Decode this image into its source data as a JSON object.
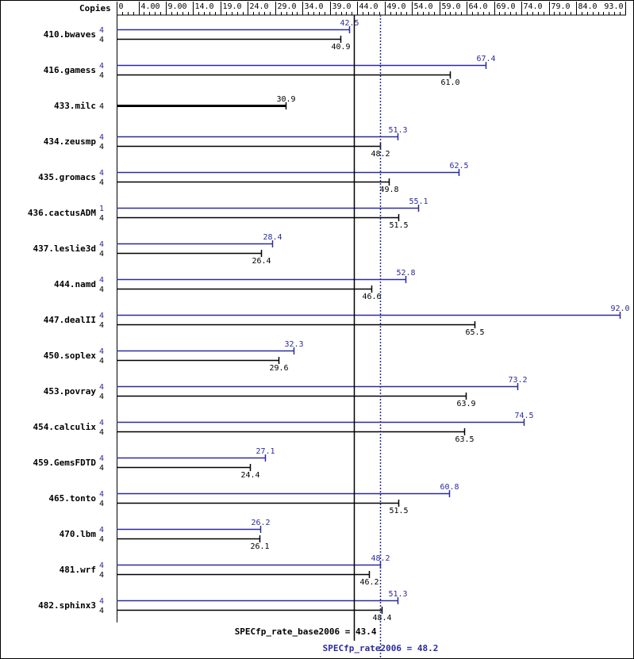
{
  "chart_data": {
    "type": "bar",
    "copies_label": "Copies",
    "x_ticks": [
      "0",
      "4.00",
      "9.00",
      "14.0",
      "19.0",
      "24.0",
      "29.0",
      "34.0",
      "39.0",
      "44.0",
      "49.0",
      "54.0",
      "59.0",
      "64.0",
      "69.0",
      "74.0",
      "79.0",
      "84.0",
      "93.0"
    ],
    "x_tick_values": [
      0,
      4,
      9,
      14,
      19,
      24,
      29,
      34,
      39,
      44,
      49,
      54,
      59,
      64,
      69,
      74,
      79,
      84,
      93
    ],
    "xlim": [
      0,
      93
    ],
    "benchmarks": [
      {
        "name": "410.bwaves",
        "peak": {
          "copies": "4",
          "value": 42.5,
          "label": "42.5"
        },
        "base": {
          "copies": "4",
          "value": 40.9,
          "label": "40.9"
        }
      },
      {
        "name": "416.gamess",
        "peak": {
          "copies": "4",
          "value": 67.4,
          "label": "67.4"
        },
        "base": {
          "copies": "4",
          "value": 61.0,
          "label": "61.0"
        }
      },
      {
        "name": "433.milc",
        "peak": null,
        "base": {
          "copies": "4",
          "value": 30.9,
          "label": "30.9"
        }
      },
      {
        "name": "434.zeusmp",
        "peak": {
          "copies": "4",
          "value": 51.3,
          "label": "51.3"
        },
        "base": {
          "copies": "4",
          "value": 48.2,
          "label": "48.2"
        }
      },
      {
        "name": "435.gromacs",
        "peak": {
          "copies": "4",
          "value": 62.5,
          "label": "62.5"
        },
        "base": {
          "copies": "4",
          "value": 49.8,
          "label": "49.8"
        }
      },
      {
        "name": "436.cactusADM",
        "peak": {
          "copies": "1",
          "value": 55.1,
          "label": "55.1"
        },
        "base": {
          "copies": "4",
          "value": 51.5,
          "label": "51.5"
        }
      },
      {
        "name": "437.leslie3d",
        "peak": {
          "copies": "4",
          "value": 28.4,
          "label": "28.4"
        },
        "base": {
          "copies": "4",
          "value": 26.4,
          "label": "26.4"
        }
      },
      {
        "name": "444.namd",
        "peak": {
          "copies": "4",
          "value": 52.8,
          "label": "52.8"
        },
        "base": {
          "copies": "4",
          "value": 46.6,
          "label": "46.6"
        }
      },
      {
        "name": "447.dealII",
        "peak": {
          "copies": "4",
          "value": 92.0,
          "label": "92.0"
        },
        "base": {
          "copies": "4",
          "value": 65.5,
          "label": "65.5"
        }
      },
      {
        "name": "450.soplex",
        "peak": {
          "copies": "4",
          "value": 32.3,
          "label": "32.3"
        },
        "base": {
          "copies": "4",
          "value": 29.6,
          "label": "29.6"
        }
      },
      {
        "name": "453.povray",
        "peak": {
          "copies": "4",
          "value": 73.2,
          "label": "73.2"
        },
        "base": {
          "copies": "4",
          "value": 63.9,
          "label": "63.9"
        }
      },
      {
        "name": "454.calculix",
        "peak": {
          "copies": "4",
          "value": 74.5,
          "label": "74.5"
        },
        "base": {
          "copies": "4",
          "value": 63.5,
          "label": "63.5"
        }
      },
      {
        "name": "459.GemsFDTD",
        "peak": {
          "copies": "4",
          "value": 27.1,
          "label": "27.1"
        },
        "base": {
          "copies": "4",
          "value": 24.4,
          "label": "24.4"
        }
      },
      {
        "name": "465.tonto",
        "peak": {
          "copies": "4",
          "value": 60.8,
          "label": "60.8"
        },
        "base": {
          "copies": "4",
          "value": 51.5,
          "label": "51.5"
        }
      },
      {
        "name": "470.lbm",
        "peak": {
          "copies": "4",
          "value": 26.2,
          "label": "26.2"
        },
        "base": {
          "copies": "4",
          "value": 26.1,
          "label": "26.1"
        }
      },
      {
        "name": "481.wrf",
        "peak": {
          "copies": "4",
          "value": 48.2,
          "label": "48.2"
        },
        "base": {
          "copies": "4",
          "value": 46.2,
          "label": "46.2"
        }
      },
      {
        "name": "482.sphinx3",
        "peak": {
          "copies": "4",
          "value": 51.3,
          "label": "51.3"
        },
        "base": {
          "copies": "4",
          "value": 48.4,
          "label": "48.4"
        }
      }
    ],
    "base_mean": {
      "value": 43.4,
      "label": "SPECfp_rate_base2006 = 43.4"
    },
    "peak_mean": {
      "value": 48.2,
      "label": "SPECfp_rate2006 = 48.2"
    },
    "colors": {
      "peak": "#2b2b9f",
      "base": "#000000"
    },
    "grid": false,
    "legend": "none"
  }
}
